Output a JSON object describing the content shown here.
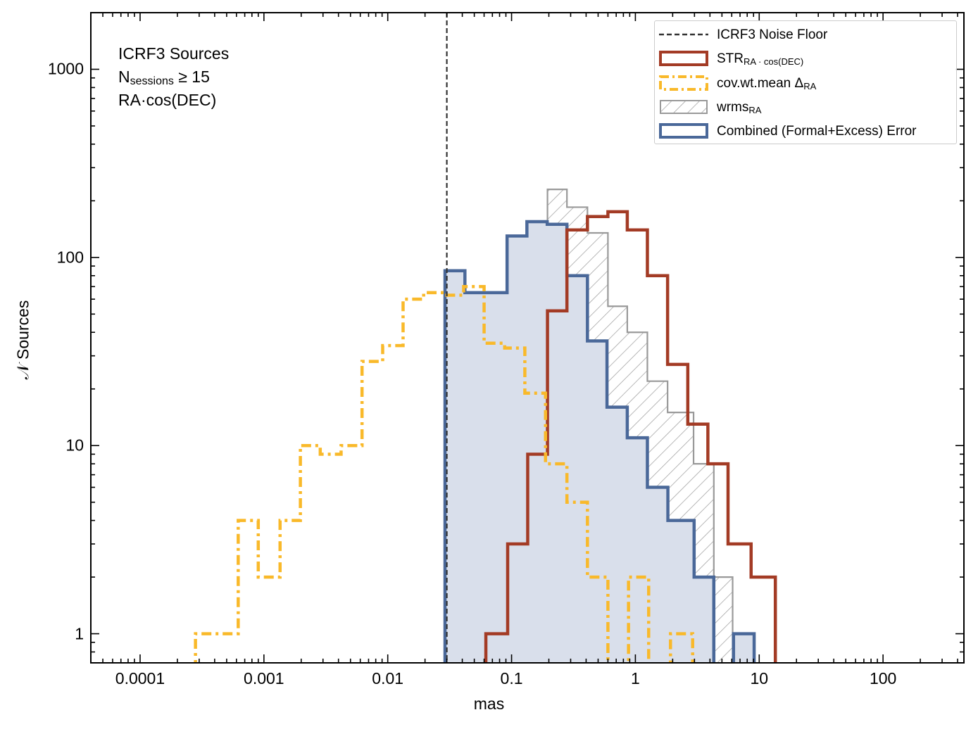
{
  "chart_data": {
    "type": "histogram-step",
    "xscale": "log",
    "yscale": "log",
    "xlim": [
      4e-05,
      450
    ],
    "ylim": [
      0.7,
      2000
    ],
    "xlabel": "mas",
    "ylabel": "𝒩 Sources",
    "xticks": [
      {
        "value": 0.0001,
        "label": "0.0001"
      },
      {
        "value": 0.001,
        "label": "0.001"
      },
      {
        "value": 0.01,
        "label": "0.01"
      },
      {
        "value": 0.1,
        "label": "0.1"
      },
      {
        "value": 1,
        "label": "1"
      },
      {
        "value": 10,
        "label": "10"
      },
      {
        "value": 100,
        "label": "100"
      }
    ],
    "yticks": [
      {
        "value": 1,
        "label": "1"
      },
      {
        "value": 10,
        "label": "10"
      },
      {
        "value": 100,
        "label": "100"
      },
      {
        "value": 1000,
        "label": "1000"
      }
    ],
    "annotation": {
      "line1": "ICRF3 Sources",
      "line2_main": "N",
      "line2_sub": "sessions",
      "line2_rest": " ≥ 15",
      "line3": "RA·cos(DEC)"
    },
    "noise_floor": {
      "x": 0.03,
      "color": "#333333"
    },
    "legend": {
      "position": "top-right",
      "items": [
        {
          "main": "ICRF3 Noise Floor",
          "sub": ""
        },
        {
          "main": "STR",
          "sub": "RA · cos(DEC)"
        },
        {
          "main": "cov.wt.mean Δ",
          "sub": "RA"
        },
        {
          "main": "wrms",
          "sub": "RA"
        },
        {
          "main": "Combined (Formal+Excess) Error",
          "sub": ""
        }
      ]
    },
    "series": [
      {
        "name": "wrms_RA",
        "style": "hatched",
        "color": "#999999",
        "edges": [
          0.093,
          0.135,
          0.195,
          0.28,
          0.41,
          0.6,
          0.86,
          1.25,
          1.82,
          2.95,
          4.3,
          6.1
        ],
        "counts": [
          18,
          120,
          230,
          185,
          135,
          55,
          40,
          22,
          15,
          8,
          2
        ]
      },
      {
        "name": "Combined (Formal+Excess) Error",
        "style": "filled",
        "color": "#4a6899",
        "fill": "#d9dfeb",
        "edges": [
          0.029,
          0.042,
          0.061,
          0.092,
          0.133,
          0.194,
          0.28,
          0.41,
          0.59,
          0.86,
          1.25,
          1.83,
          2.98,
          4.3,
          6.2,
          9.1
        ],
        "counts": [
          85,
          65,
          65,
          130,
          155,
          150,
          80,
          36,
          16,
          11,
          6,
          4,
          2,
          0,
          1
        ]
      },
      {
        "name": "STR_RA·cos(DEC)",
        "style": "step",
        "color": "#a33b25",
        "edges": [
          0.062,
          0.093,
          0.135,
          0.195,
          0.28,
          0.41,
          0.6,
          0.86,
          1.25,
          1.82,
          2.65,
          3.85,
          5.6,
          8.6,
          13.5
        ],
        "counts": [
          1,
          3,
          9,
          52,
          140,
          165,
          175,
          140,
          80,
          27,
          13,
          8,
          3,
          2
        ]
      },
      {
        "name": "cov.wt.mean Δ_RA",
        "style": "dashdot",
        "color": "#f9b92a",
        "edges": [
          0.00028,
          0.00062,
          0.0009,
          0.00135,
          0.00197,
          0.00285,
          0.0042,
          0.0062,
          0.0091,
          0.0133,
          0.0195,
          0.0285,
          0.041,
          0.06,
          0.088,
          0.128,
          0.188,
          0.28,
          0.41,
          0.6,
          0.88,
          1.28,
          1.92,
          2.9
        ],
        "counts": [
          1,
          4,
          2,
          4,
          10,
          9,
          10,
          28,
          34,
          60,
          65,
          63,
          70,
          35,
          33,
          19,
          8,
          5,
          2,
          0,
          2,
          0,
          1
        ]
      }
    ]
  }
}
